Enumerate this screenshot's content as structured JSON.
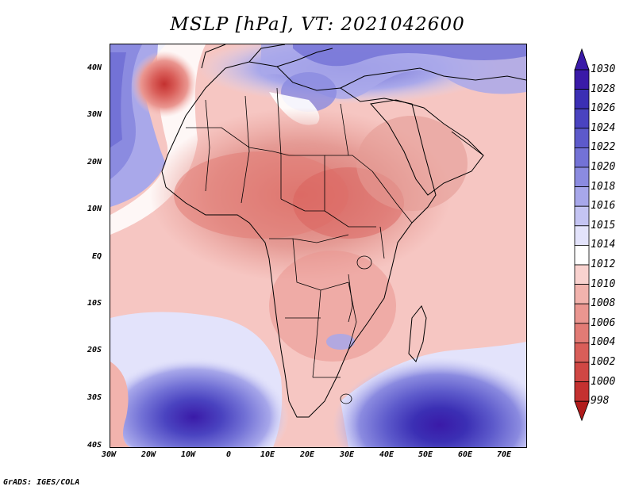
{
  "title": "MSLP [hPa], VT: 2021042600",
  "credit": "GrADS: IGES/COLA",
  "lat_labels": [
    "40N",
    "30N",
    "20N",
    "10N",
    "EQ",
    "10S",
    "20S",
    "30S",
    "40S"
  ],
  "lon_labels": [
    "30W",
    "20W",
    "10W",
    "0",
    "10E",
    "20E",
    "30E",
    "40E",
    "50E",
    "60E",
    "70E"
  ],
  "colorbar": {
    "levels": [
      "1030",
      "1028",
      "1026",
      "1024",
      "1022",
      "1020",
      "1018",
      "1016",
      "1015",
      "1014",
      "1012",
      "1010",
      "1008",
      "1006",
      "1004",
      "1002",
      "1000",
      "998"
    ],
    "colors": [
      "#3a1aa8",
      "#3b2fb4",
      "#4a43c0",
      "#5d5acb",
      "#7372d6",
      "#8b8be0",
      "#a7a7ea",
      "#c4c4f3",
      "#e3e3fb",
      "#ffffff",
      "#f9d2cf",
      "#f2b3ad",
      "#ea9690",
      "#e27b75",
      "#d95e59",
      "#d04744",
      "#c43130",
      "#b11c1c"
    ]
  },
  "map_colors": {
    "background": "#f6c6c2",
    "high_dark": "#3b2fb4",
    "high_mid": "#6f6ed4",
    "high_light": "#a9a8ea",
    "high_pale": "#d7d7f7",
    "low_light": "#f1b1ab",
    "low_mid": "#e6918b",
    "low_dark": "#d45a56",
    "land_warm": "#e59b95",
    "ridge": "#ffffff"
  }
}
